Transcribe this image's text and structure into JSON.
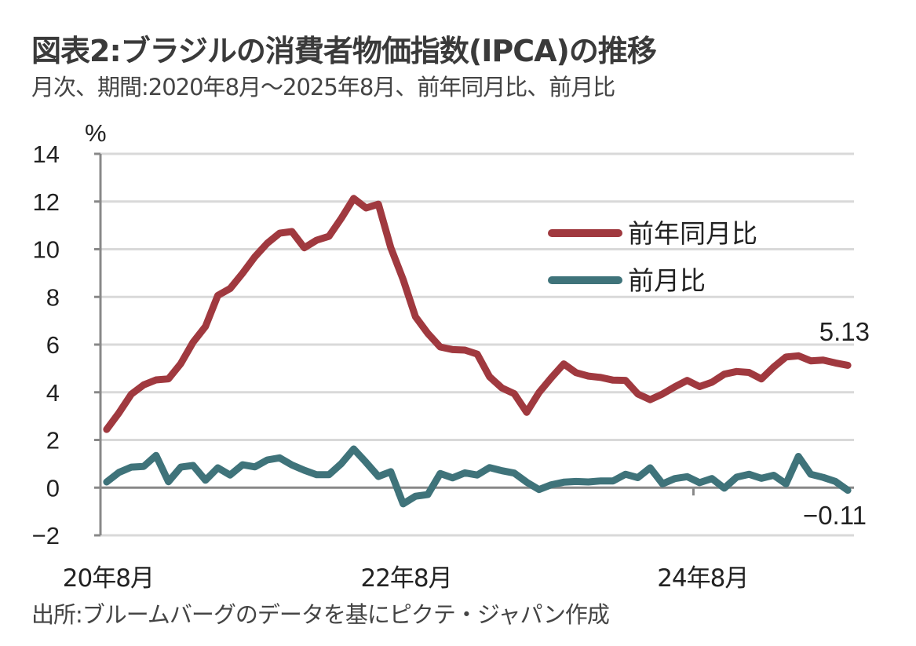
{
  "title": "図表2:ブラジルの消費者物価指数(IPCA)の推移",
  "subtitle": "月次、期間:2020年8月～2025年8月、前年同月比、前月比",
  "source": "出所:ブルームバーグのデータを基にピクテ・ジャパン作成",
  "chart_data": {
    "type": "line",
    "title": "図表2:ブラジルの消費者物価指数(IPCA)の推移",
    "xlabel": "",
    "ylabel": "%",
    "ylim": [
      -2,
      14
    ],
    "yticks": [
      "-2",
      "0",
      "2",
      "4",
      "6",
      "8",
      "10",
      "12",
      "14"
    ],
    "ytick_values": [
      -2,
      0,
      2,
      4,
      6,
      8,
      10,
      12,
      14
    ],
    "grid": true,
    "legend_position": "top-right",
    "x_start": "2020-08",
    "x_end": "2025-08",
    "xticks": [
      {
        "label": "20年8月",
        "index": 0
      },
      {
        "label": "22年8月",
        "index": 24
      },
      {
        "label": "24年8月",
        "index": 48
      }
    ],
    "series": [
      {
        "name": "前年同月比",
        "color": "#a0393f",
        "values": [
          2.44,
          3.14,
          3.92,
          4.31,
          4.52,
          4.56,
          5.2,
          6.1,
          6.76,
          8.06,
          8.35,
          8.99,
          9.68,
          10.25,
          10.67,
          10.74,
          10.06,
          10.38,
          10.54,
          11.3,
          12.13,
          11.73,
          11.89,
          10.07,
          8.73,
          7.17,
          6.47,
          5.9,
          5.79,
          5.77,
          5.6,
          4.65,
          4.18,
          3.94,
          3.16,
          3.99,
          4.61,
          5.19,
          4.82,
          4.68,
          4.62,
          4.51,
          4.5,
          3.93,
          3.69,
          3.93,
          4.23,
          4.5,
          4.24,
          4.42,
          4.76,
          4.87,
          4.83,
          4.56,
          5.06,
          5.48,
          5.53,
          5.32,
          5.35,
          5.23,
          5.13
        ],
        "end_label": "5.13"
      },
      {
        "name": "前月比",
        "color": "#3f737a",
        "values": [
          0.24,
          0.64,
          0.86,
          0.89,
          1.35,
          0.25,
          0.86,
          0.93,
          0.31,
          0.83,
          0.53,
          0.96,
          0.87,
          1.16,
          1.25,
          0.95,
          0.73,
          0.54,
          0.54,
          1.01,
          1.62,
          1.06,
          0.47,
          0.67,
          -0.68,
          -0.36,
          -0.29,
          0.59,
          0.41,
          0.62,
          0.53,
          0.84,
          0.71,
          0.61,
          0.23,
          -0.08,
          0.12,
          0.23,
          0.26,
          0.24,
          0.28,
          0.28,
          0.56,
          0.42,
          0.83,
          0.16,
          0.38,
          0.46,
          0.21,
          0.38,
          -0.02,
          0.44,
          0.56,
          0.39,
          0.52,
          0.16,
          1.31,
          0.56,
          0.43,
          0.26,
          -0.11
        ],
        "end_label": "−0.11"
      }
    ]
  }
}
